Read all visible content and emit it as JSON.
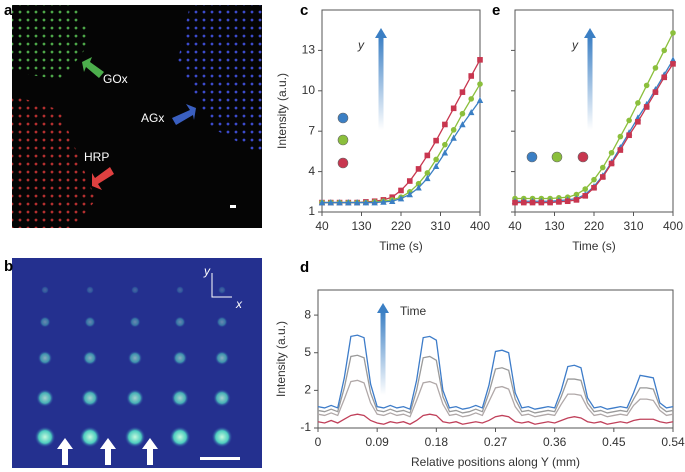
{
  "panel_labels": [
    "a",
    "b",
    "c",
    "d",
    "e"
  ],
  "images": {
    "a": {
      "labels": [
        "GOx",
        "AGx",
        "HRP"
      ]
    },
    "b": {
      "axis_labels": [
        "y",
        "x"
      ]
    }
  },
  "chart_data": [
    {
      "type": "line",
      "ylabel": "Intensity (a.u.)",
      "xlabel": "Time (s)",
      "annotation": "y",
      "xlim": [
        40,
        400
      ],
      "xticks": [
        40,
        130,
        220,
        310,
        400
      ],
      "ylim": [
        1,
        16
      ],
      "yticks": [
        1,
        4,
        7,
        10,
        13
      ],
      "show_ytick_labels": true,
      "x": [
        40,
        60,
        80,
        100,
        120,
        140,
        160,
        180,
        200,
        220,
        240,
        260,
        280,
        300,
        320,
        340,
        360,
        380,
        400
      ],
      "series": [
        {
          "color": "#c8364f",
          "marker": "square",
          "values": [
            1.7,
            1.7,
            1.7,
            1.7,
            1.7,
            1.75,
            1.8,
            1.9,
            2.1,
            2.6,
            3.3,
            4.2,
            5.2,
            6.3,
            7.5,
            8.7,
            9.9,
            11.1,
            12.3
          ]
        },
        {
          "color": "#8bbf3c",
          "marker": "circle",
          "values": [
            1.7,
            1.7,
            1.7,
            1.7,
            1.7,
            1.7,
            1.75,
            1.8,
            1.9,
            2.1,
            2.5,
            3.1,
            3.9,
            4.9,
            6.0,
            7.1,
            8.3,
            9.4,
            10.5
          ]
        },
        {
          "color": "#3b7fc4",
          "marker": "triangle",
          "values": [
            1.7,
            1.7,
            1.7,
            1.7,
            1.7,
            1.7,
            1.7,
            1.75,
            1.8,
            2.0,
            2.3,
            2.8,
            3.5,
            4.4,
            5.4,
            6.5,
            7.5,
            8.4,
            9.3
          ]
        }
      ]
    },
    {
      "type": "line",
      "annotation": "y",
      "xlabel": "Time (s)",
      "xlim": [
        40,
        400
      ],
      "xticks": [
        40,
        130,
        220,
        310,
        400
      ],
      "ylim": [
        1,
        16
      ],
      "yticks": [
        1,
        4,
        7,
        10,
        13
      ],
      "show_ytick_labels": false,
      "x": [
        40,
        60,
        80,
        100,
        120,
        140,
        160,
        180,
        200,
        220,
        240,
        260,
        280,
        300,
        320,
        340,
        360,
        380,
        400
      ],
      "series": [
        {
          "color": "#8bbf3c",
          "marker": "circle",
          "values": [
            2.0,
            2.0,
            2.0,
            2.0,
            2.0,
            2.05,
            2.1,
            2.3,
            2.7,
            3.4,
            4.3,
            5.4,
            6.6,
            7.8,
            9.1,
            10.4,
            11.7,
            13.0,
            14.3
          ]
        },
        {
          "color": "#3b7fc4",
          "marker": "triangle",
          "values": [
            1.8,
            1.8,
            1.8,
            1.8,
            1.8,
            1.85,
            1.9,
            2.0,
            2.3,
            2.9,
            3.7,
            4.7,
            5.8,
            6.9,
            8.0,
            9.0,
            10.1,
            11.2,
            12.3
          ]
        },
        {
          "color": "#c8364f",
          "marker": "square",
          "values": [
            1.7,
            1.7,
            1.7,
            1.7,
            1.7,
            1.75,
            1.8,
            1.9,
            2.2,
            2.8,
            3.6,
            4.6,
            5.6,
            6.7,
            7.7,
            8.8,
            9.9,
            11.0,
            12.0
          ]
        }
      ]
    },
    {
      "type": "line",
      "ylabel": "Intensity (a.u.)",
      "xlabel": "Relative  positions along Y (mm)",
      "annotation": "Time",
      "xlim": [
        0,
        0.54
      ],
      "xticks": [
        0,
        0.09,
        0.18,
        0.27,
        0.36,
        0.45,
        0.54
      ],
      "ylim": [
        -1,
        10
      ],
      "yticks": [
        -1,
        2,
        5,
        8
      ],
      "show_ytick_labels": true,
      "x": [
        0,
        0.01,
        0.02,
        0.03,
        0.04,
        0.05,
        0.06,
        0.07,
        0.08,
        0.09,
        0.1,
        0.11,
        0.12,
        0.13,
        0.14,
        0.15,
        0.16,
        0.17,
        0.18,
        0.19,
        0.2,
        0.21,
        0.22,
        0.23,
        0.24,
        0.25,
        0.26,
        0.27,
        0.28,
        0.29,
        0.3,
        0.31,
        0.32,
        0.33,
        0.34,
        0.35,
        0.36,
        0.37,
        0.38,
        0.39,
        0.4,
        0.41,
        0.42,
        0.43,
        0.44,
        0.45,
        0.46,
        0.47,
        0.48,
        0.49,
        0.5,
        0.51,
        0.52,
        0.53,
        0.54
      ],
      "series": [
        {
          "color": "#c0405a",
          "values": [
            -0.5,
            -0.6,
            -0.4,
            -0.6,
            -0.3,
            0.0,
            0.1,
            0.0,
            -0.4,
            -0.6,
            -0.7,
            -0.5,
            -0.6,
            -0.5,
            -0.7,
            -0.4,
            0.0,
            0.1,
            0.0,
            -0.5,
            -0.6,
            -0.5,
            -0.7,
            -0.6,
            -0.5,
            -0.6,
            -0.4,
            -0.1,
            0.0,
            -0.1,
            -0.5,
            -0.6,
            -0.5,
            -0.7,
            -0.6,
            -0.5,
            -0.6,
            -0.4,
            -0.2,
            -0.1,
            -0.2,
            -0.5,
            -0.6,
            -0.5,
            -0.7,
            -0.6,
            -0.5,
            -0.6,
            -0.4,
            -0.3,
            -0.3,
            -0.3,
            -0.5,
            -0.6,
            -0.5
          ]
        },
        {
          "color": "#b0a8a8",
          "values": [
            0.1,
            0.0,
            0.2,
            0.0,
            1.3,
            2.7,
            2.8,
            2.6,
            1.0,
            0.1,
            0.0,
            0.2,
            0.0,
            0.1,
            -0.1,
            1.2,
            2.6,
            2.7,
            2.5,
            0.9,
            0.0,
            0.1,
            -0.1,
            0.0,
            0.2,
            0.0,
            1.1,
            2.2,
            2.3,
            2.1,
            0.7,
            0.0,
            0.1,
            -0.1,
            0.0,
            0.1,
            0.0,
            0.9,
            1.7,
            1.7,
            1.6,
            0.6,
            0.0,
            0.1,
            -0.1,
            0.0,
            0.1,
            0.0,
            0.8,
            1.3,
            1.3,
            1.2,
            0.4,
            0.0,
            0.1
          ]
        },
        {
          "color": "#9a9a9a",
          "values": [
            0.4,
            0.3,
            0.5,
            0.3,
            2.2,
            4.7,
            4.8,
            4.6,
            1.8,
            0.4,
            0.3,
            0.5,
            0.3,
            0.4,
            0.2,
            2.0,
            4.6,
            4.7,
            4.4,
            1.5,
            0.3,
            0.4,
            0.2,
            0.3,
            0.5,
            0.3,
            1.8,
            3.7,
            3.8,
            3.6,
            1.3,
            0.3,
            0.4,
            0.2,
            0.3,
            0.4,
            0.3,
            1.5,
            2.9,
            2.9,
            2.8,
            1.0,
            0.3,
            0.4,
            0.2,
            0.3,
            0.4,
            0.3,
            1.3,
            2.2,
            2.2,
            2.1,
            0.7,
            0.3,
            0.4
          ]
        },
        {
          "color": "#3d7cc9",
          "values": [
            0.7,
            0.6,
            0.8,
            0.6,
            3.0,
            6.3,
            6.4,
            6.2,
            2.5,
            0.7,
            0.6,
            0.8,
            0.6,
            0.7,
            0.5,
            2.8,
            6.2,
            6.3,
            6.0,
            2.0,
            0.6,
            0.7,
            0.5,
            0.6,
            0.8,
            0.6,
            2.4,
            5.1,
            5.2,
            5.0,
            1.8,
            0.6,
            0.7,
            0.5,
            0.6,
            0.7,
            0.6,
            2.0,
            3.9,
            4.0,
            3.8,
            1.4,
            0.6,
            0.7,
            0.5,
            0.6,
            0.7,
            0.6,
            1.8,
            3.2,
            3.1,
            3.0,
            1.0,
            0.6,
            0.7
          ]
        }
      ]
    }
  ]
}
